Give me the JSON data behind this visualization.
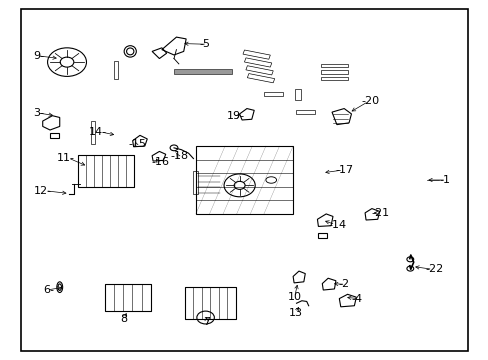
{
  "bg_color": "#ffffff",
  "border_color": "#000000",
  "line_color": "#000000",
  "text_color": "#000000",
  "fig_width": 4.89,
  "fig_height": 3.6,
  "dpi": 100,
  "border": [
    0.04,
    0.02,
    0.96,
    0.98
  ],
  "label_fontsize": 8
}
